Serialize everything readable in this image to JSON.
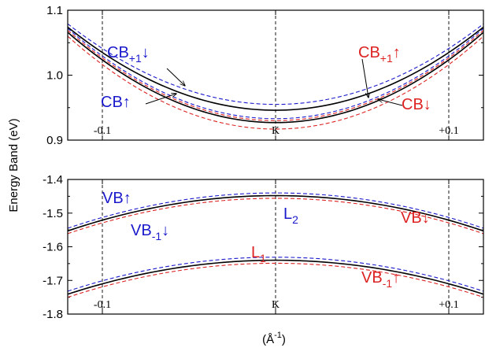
{
  "chart_data": {
    "type": "line",
    "ylabel": "Energy Band (eV)",
    "xlabel_main": "(Å",
    "xlabel_sup": "-1",
    "xlabel_close": ")",
    "x_tick_labels": [
      "-0.1",
      "K",
      "+0.1"
    ],
    "x_ticks": [
      -0.1,
      0.0,
      0.1
    ],
    "xlim": [
      -0.12,
      0.12
    ],
    "colors": {
      "up_spin": "#1a1acc",
      "down_spin": "#dd2222",
      "total": "#000000"
    },
    "panels": [
      {
        "name": "conduction",
        "ylim": [
          0.9,
          1.1
        ],
        "y_ticks": [
          0.9,
          1.0,
          1.1
        ],
        "y_tick_labels": [
          "0.9",
          "1.0",
          "1.1"
        ],
        "curves": [
          {
            "id": "cb_p1_up_blue",
            "color": "blue",
            "dash": true,
            "min": 0.955,
            "end": 1.079
          },
          {
            "id": "cb_up_blue",
            "color": "blue",
            "dash": true,
            "min": 0.933,
            "end": 1.072
          },
          {
            "id": "cb_black_1",
            "color": "black",
            "dash": false,
            "min": 0.946,
            "end": 1.074
          },
          {
            "id": "cb_black_2",
            "color": "black",
            "dash": false,
            "min": 0.927,
            "end": 1.066
          },
          {
            "id": "cb_down_red",
            "color": "red",
            "dash": true,
            "min": 0.93,
            "end": 1.069
          },
          {
            "id": "cb_p1_down_red",
            "color": "red",
            "dash": true,
            "min": 0.917,
            "end": 1.06
          }
        ],
        "labels": [
          {
            "main": "CB",
            "sub": "+1",
            "arrow": "↓",
            "color": "blue"
          },
          {
            "main": "CB",
            "sub": "",
            "arrow": "↑",
            "color": "blue"
          },
          {
            "main": "CB",
            "sub": "+1",
            "arrow": "↑",
            "color": "red"
          },
          {
            "main": "CB",
            "sub": "",
            "arrow": "↓",
            "color": "red"
          }
        ]
      },
      {
        "name": "valence",
        "ylim": [
          -1.8,
          -1.4
        ],
        "y_ticks": [
          -1.8,
          -1.7,
          -1.6,
          -1.5,
          -1.4
        ],
        "y_tick_labels": [
          "-1.8",
          "-1.7",
          "-1.6",
          "-1.5",
          "-1.4"
        ],
        "curves": [
          {
            "id": "vb_up_blue",
            "color": "blue",
            "dash": true,
            "max": -1.44,
            "end": -1.545
          },
          {
            "id": "vb_black",
            "color": "black",
            "dash": false,
            "max": -1.448,
            "end": -1.553
          },
          {
            "id": "vb_down_red",
            "color": "red",
            "dash": true,
            "max": -1.456,
            "end": -1.561
          },
          {
            "id": "vb_m1_down_blue",
            "color": "blue",
            "dash": true,
            "max": -1.631,
            "end": -1.732
          },
          {
            "id": "vb_m1_black",
            "color": "black",
            "dash": false,
            "max": -1.64,
            "end": -1.741
          },
          {
            "id": "vb_m1_up_red",
            "color": "red",
            "dash": true,
            "max": -1.649,
            "end": -1.75
          }
        ],
        "labels": [
          {
            "main": "VB",
            "sub": "",
            "arrow": "↑",
            "color": "blue"
          },
          {
            "main": "VB",
            "sub": "-1",
            "arrow": "↓",
            "color": "blue"
          },
          {
            "main": "L",
            "sub": "2",
            "arrow": "",
            "color": "blue"
          },
          {
            "main": "VB",
            "sub": "",
            "arrow": "↓",
            "color": "red"
          },
          {
            "main": "L",
            "sub": "1",
            "arrow": "",
            "color": "red"
          },
          {
            "main": "VB",
            "sub": "-1",
            "arrow": "↑",
            "color": "red"
          }
        ]
      }
    ]
  }
}
